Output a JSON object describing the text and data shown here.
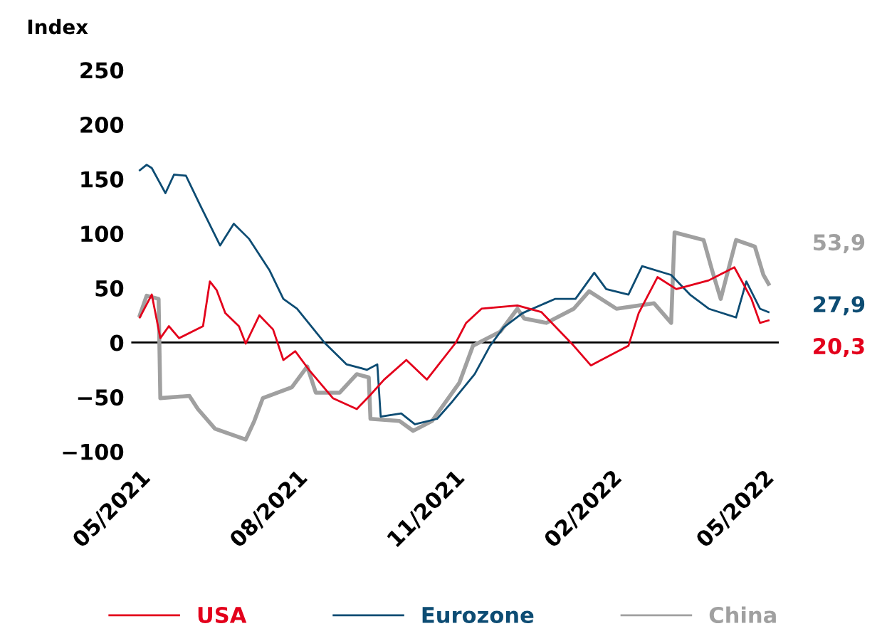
{
  "chart_data": {
    "type": "line",
    "ylabel": "Index",
    "xlim": [
      "2021-04-26",
      "2022-05-10"
    ],
    "xticks": [
      {
        "value": "2021-05-01",
        "label": "05/2021"
      },
      {
        "value": "2021-08-01",
        "label": "08/2021"
      },
      {
        "value": "2021-11-01",
        "label": "11/2021"
      },
      {
        "value": "2022-02-01",
        "label": "02/2022"
      },
      {
        "value": "2022-05-01",
        "label": "05/2022"
      }
    ],
    "ylim": [
      -100,
      250
    ],
    "yticks": [
      {
        "value": -100,
        "label": "−100"
      },
      {
        "value": -50,
        "label": "−50"
      },
      0,
      50,
      100,
      150,
      200,
      250
    ],
    "grid": false,
    "legend": "bottom",
    "line_style": "solid",
    "marker": "none",
    "ref_lines": [
      {
        "axis": "y",
        "value": 0,
        "color": "#000000"
      }
    ],
    "series": [
      {
        "name": "USA",
        "color": "#e3001b",
        "x": [
          "2021-05-01",
          "2021-05-08",
          "2021-05-13",
          "2021-05-18",
          "2021-05-24",
          "2021-06-07",
          "2021-06-11",
          "2021-06-15",
          "2021-06-20",
          "2021-06-28",
          "2021-07-02",
          "2021-07-10",
          "2021-07-18",
          "2021-07-24",
          "2021-07-31",
          "2021-08-08",
          "2021-08-22",
          "2021-09-05",
          "2021-09-13",
          "2021-09-21",
          "2021-10-04",
          "2021-10-16",
          "2021-10-29",
          "2021-11-02",
          "2021-11-08",
          "2021-11-17",
          "2021-12-08",
          "2021-12-22",
          "2022-01-10",
          "2022-01-20",
          "2022-02-11",
          "2022-02-17",
          "2022-02-28",
          "2022-03-11",
          "2022-03-30",
          "2022-04-14",
          "2022-04-24",
          "2022-04-29",
          "2022-05-04"
        ],
        "values": [
          23,
          44,
          4,
          15,
          4,
          15,
          56,
          48,
          27,
          15,
          -1,
          25,
          12,
          -16,
          -8,
          -25,
          -51,
          -61,
          -48,
          -34,
          -16,
          -34,
          -8,
          0,
          18,
          31,
          34,
          28,
          -3,
          -21,
          -3,
          27,
          60,
          49,
          57,
          69,
          40,
          18,
          20.3
        ]
      },
      {
        "name": "Eurozone",
        "color": "#0d4c73",
        "x": [
          "2021-05-01",
          "2021-05-05",
          "2021-05-08",
          "2021-05-16",
          "2021-05-21",
          "2021-05-28",
          "2021-06-05",
          "2021-06-17",
          "2021-06-25",
          "2021-07-04",
          "2021-07-16",
          "2021-07-24",
          "2021-08-01",
          "2021-08-17",
          "2021-08-30",
          "2021-09-11",
          "2021-09-17",
          "2021-09-19",
          "2021-10-01",
          "2021-10-09",
          "2021-10-22",
          "2021-10-31",
          "2021-11-13",
          "2021-11-22",
          "2021-11-30",
          "2021-12-11",
          "2021-12-30",
          "2022-01-11",
          "2022-01-22",
          "2022-01-29",
          "2022-02-11",
          "2022-02-19",
          "2022-03-08",
          "2022-03-19",
          "2022-03-30",
          "2022-04-15",
          "2022-04-21",
          "2022-04-29",
          "2022-05-04"
        ],
        "values": [
          158,
          163,
          160,
          137,
          154,
          153,
          127,
          89,
          109,
          95,
          66,
          40,
          31,
          0,
          -20,
          -25,
          -20,
          -68,
          -65,
          -75,
          -70,
          -54,
          -29,
          -3,
          14,
          27,
          40,
          40,
          64,
          49,
          44,
          70,
          62,
          44,
          31,
          23,
          56,
          31,
          27.9
        ]
      },
      {
        "name": "China",
        "color": "#a0a0a0",
        "x": [
          "2021-05-01",
          "2021-05-05",
          "2021-05-12",
          "2021-05-13",
          "2021-05-30",
          "2021-06-04",
          "2021-06-14",
          "2021-07-02",
          "2021-07-07",
          "2021-07-12",
          "2021-07-29",
          "2021-08-07",
          "2021-08-12",
          "2021-08-26",
          "2021-09-05",
          "2021-09-12",
          "2021-09-13",
          "2021-09-30",
          "2021-10-08",
          "2021-10-19",
          "2021-11-04",
          "2021-11-12",
          "2021-11-28",
          "2021-12-08",
          "2021-12-12",
          "2021-12-25",
          "2022-01-10",
          "2022-01-19",
          "2022-02-04",
          "2022-02-26",
          "2022-03-08",
          "2022-03-10",
          "2022-03-27",
          "2022-04-01",
          "2022-04-06",
          "2022-04-15",
          "2022-04-26",
          "2022-05-01",
          "2022-05-04"
        ],
        "values": [
          25,
          43,
          40,
          -51,
          -49,
          -61,
          -79,
          -89,
          -72,
          -51,
          -41,
          -22,
          -46,
          -46,
          -29,
          -32,
          -70,
          -72,
          -81,
          -72,
          -37,
          -3,
          10,
          31,
          22,
          18,
          31,
          47,
          31,
          36,
          18,
          101,
          94,
          66,
          40,
          94,
          88,
          62,
          53.9
        ]
      }
    ],
    "annotations": [
      {
        "text": "20,3",
        "x": "2022-05-04",
        "y": 20.3
      },
      {
        "text": "27,9",
        "x": "2022-05-04",
        "y": 27.9
      },
      {
        "text": "53,9",
        "x": "2022-05-04",
        "y": 53.9
      }
    ]
  }
}
